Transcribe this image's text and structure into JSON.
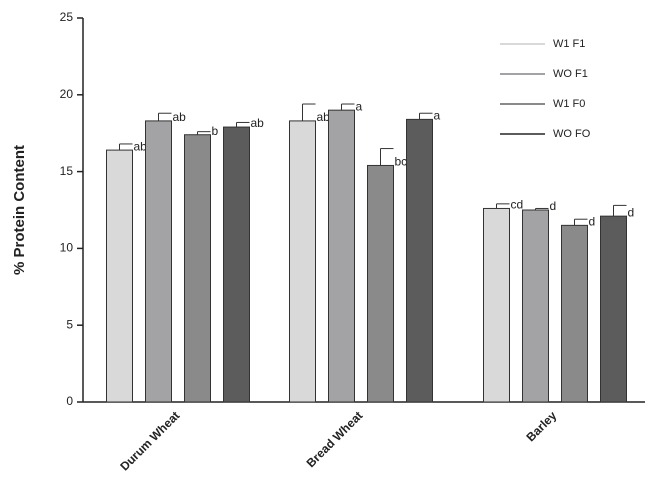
{
  "chart_data": {
    "type": "bar",
    "ylabel": "% Protein Content",
    "categories": [
      "Durum Wheat",
      "Bread Wheat",
      "Barley"
    ],
    "series": [
      {
        "name": "W1 F1",
        "color": "#d9d9d9",
        "values": [
          16.4,
          18.3,
          12.6
        ],
        "errors": [
          0.4,
          1.1,
          0.3
        ],
        "labels": [
          "ab",
          "ab",
          "cd"
        ]
      },
      {
        "name": "WO F1",
        "color": "#a3a3a6",
        "values": [
          18.3,
          19.0,
          12.5
        ],
        "errors": [
          0.5,
          0.4,
          0.1
        ],
        "labels": [
          "ab",
          "a",
          "d"
        ]
      },
      {
        "name": "W1 F0",
        "color": "#8a8a8a",
        "values": [
          17.4,
          15.4,
          11.5
        ],
        "errors": [
          0.2,
          1.1,
          0.4
        ],
        "labels": [
          "b",
          "bc",
          "d"
        ]
      },
      {
        "name": "WO FO",
        "color": "#5c5c5c",
        "values": [
          17.9,
          18.4,
          12.1
        ],
        "errors": [
          0.3,
          0.4,
          0.7
        ],
        "labels": [
          "ab",
          "a",
          "d"
        ]
      }
    ],
    "ylim": [
      0,
      25
    ],
    "yticks": [
      0,
      5,
      10,
      15,
      20,
      25
    ],
    "grid": false,
    "legend": "top-right"
  }
}
